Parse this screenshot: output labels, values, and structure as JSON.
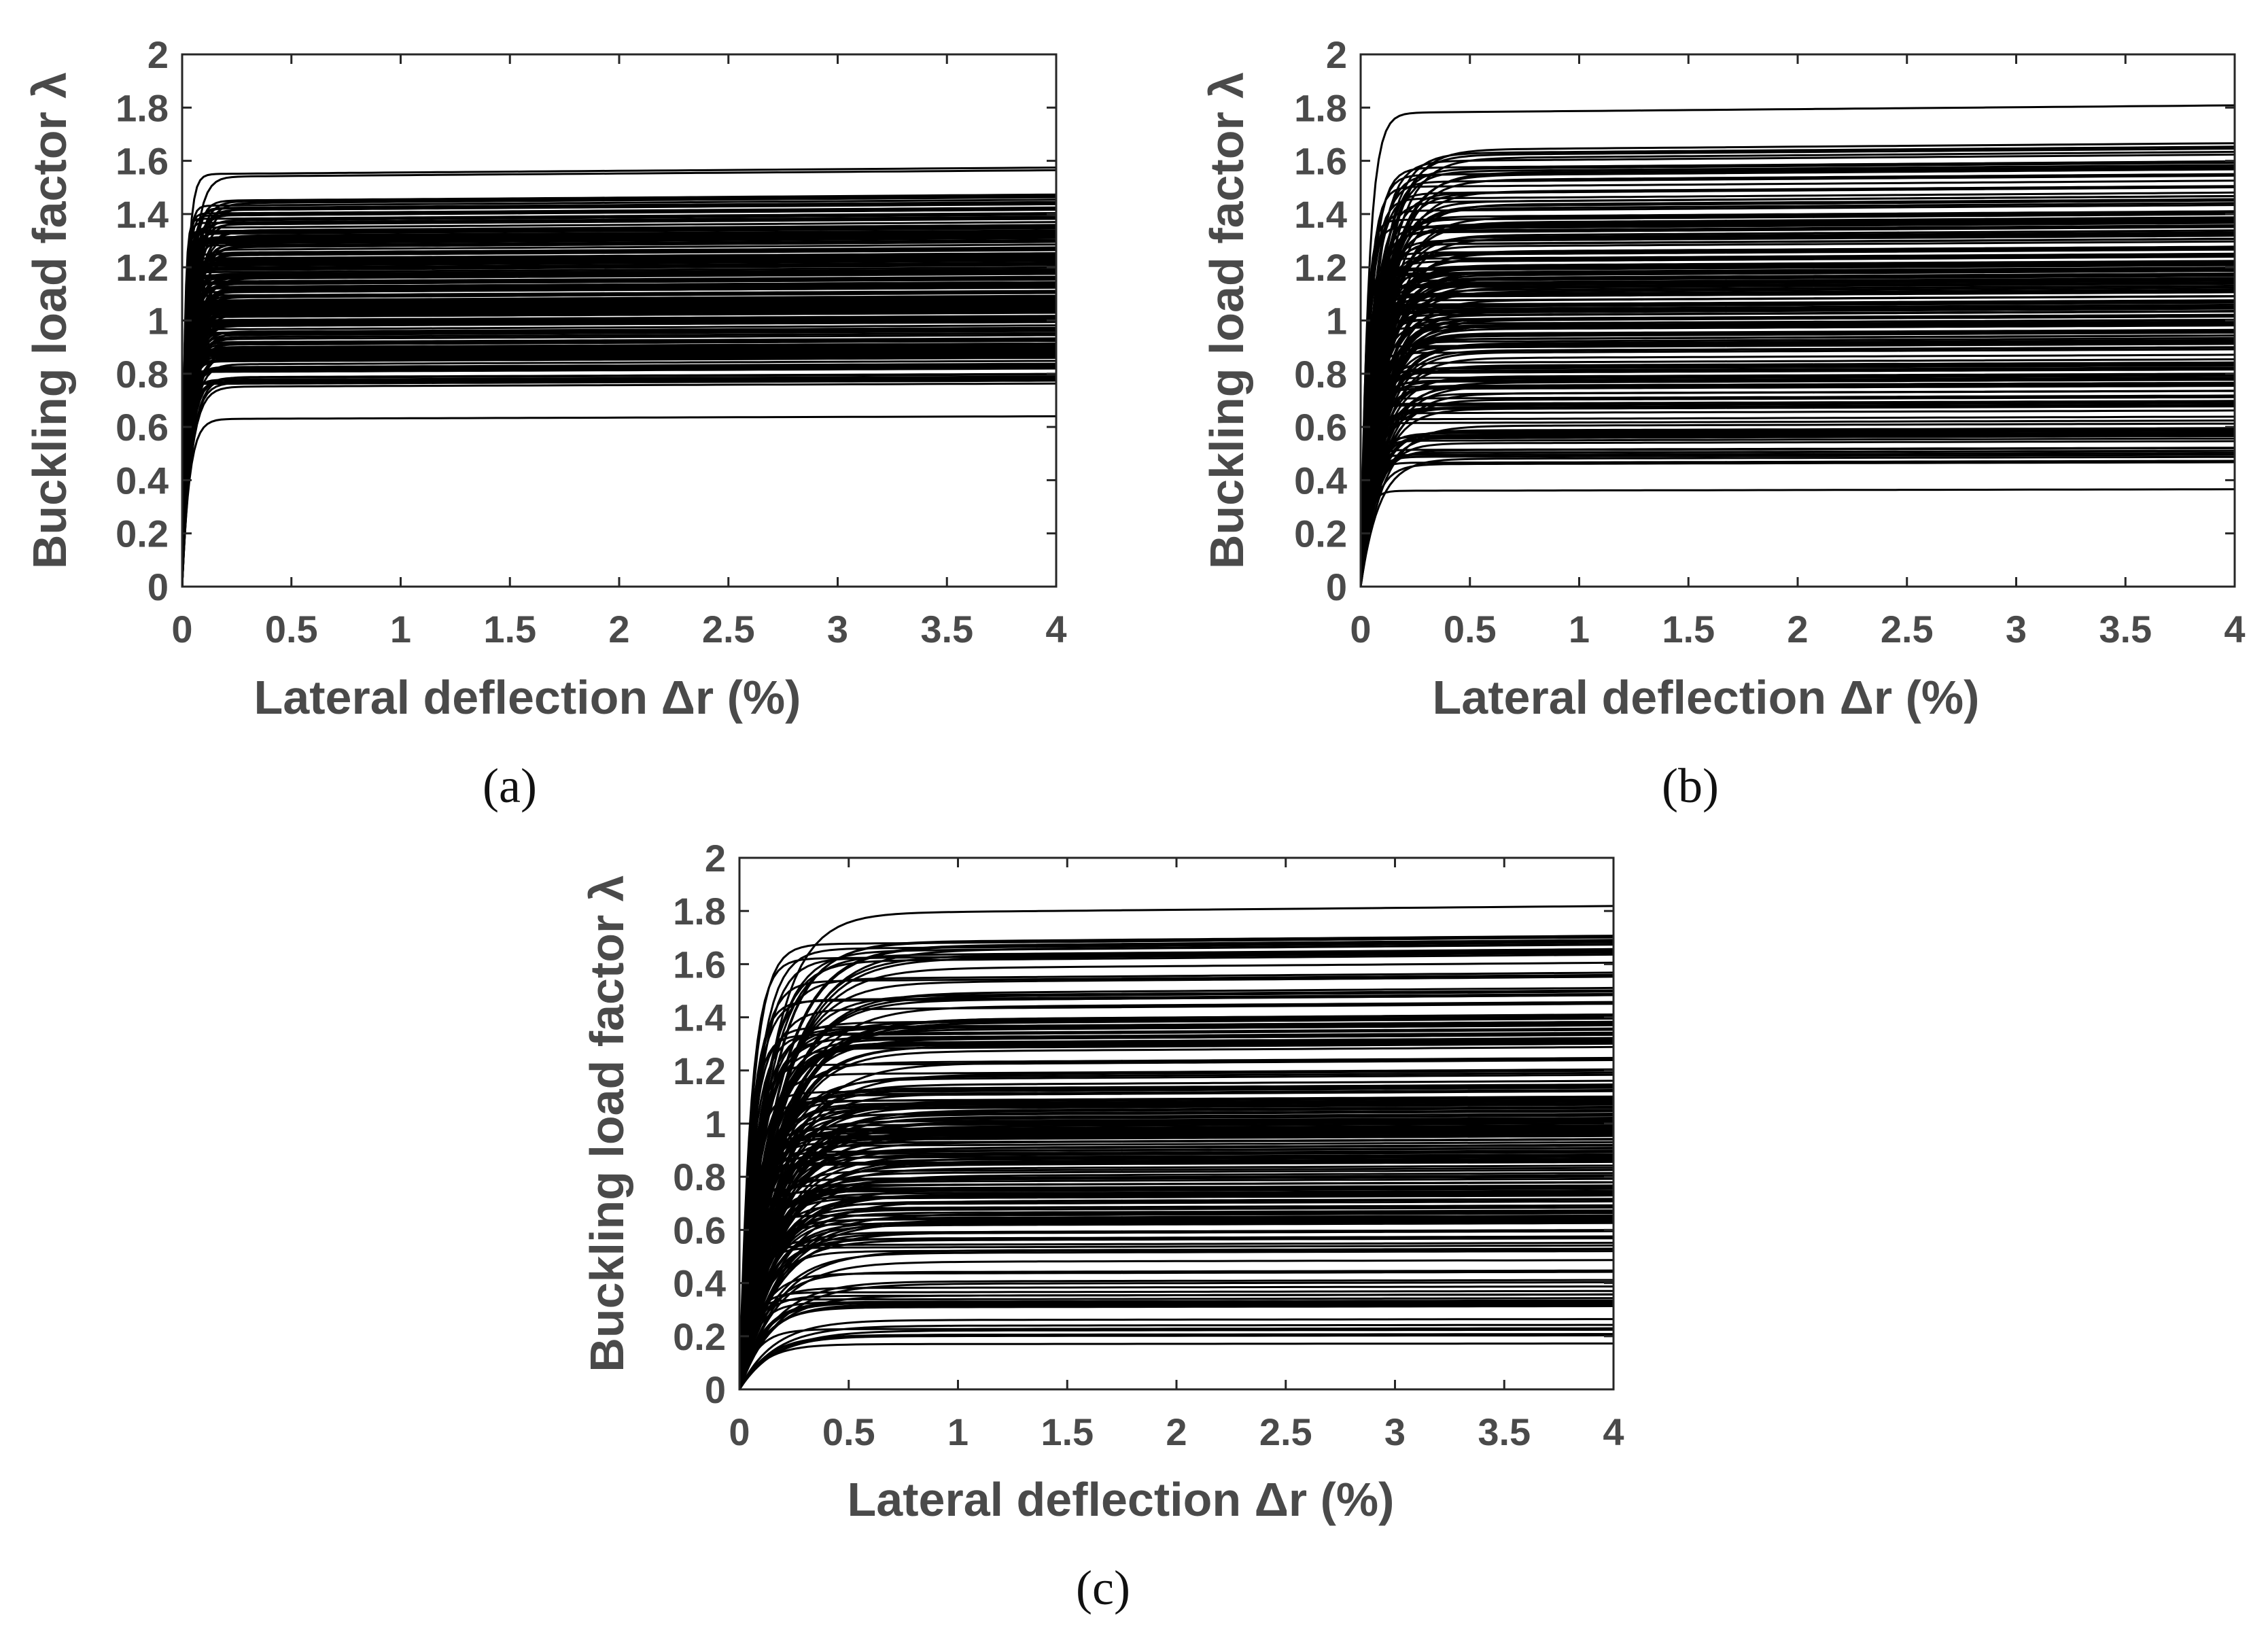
{
  "chart_data": [
    {
      "panel": "a",
      "caption": "(a)",
      "type": "line",
      "xlabel": "Lateral deflection Δr (%)",
      "ylabel": "Buckling load factor λ",
      "xlim": [
        0,
        4
      ],
      "ylim": [
        0,
        2
      ],
      "xticks": [
        "0",
        "0.5",
        "1",
        "1.5",
        "2",
        "2.5",
        "3",
        "3.5",
        "4"
      ],
      "yticks": [
        "0",
        "0.2",
        "0.4",
        "0.6",
        "0.8",
        "1",
        "1.2",
        "1.4",
        "1.6",
        "1.8",
        "2"
      ],
      "grid": false,
      "curve_count": 200,
      "plateau_min": 0.63,
      "plateau_max": 1.55,
      "plateau_core": [
        0.72,
        1.45
      ],
      "rise_scale": 0.025,
      "outer_curves": [
        0.63,
        1.55,
        1.54,
        1.45,
        1.44
      ]
    },
    {
      "panel": "b",
      "caption": "(b)",
      "type": "line",
      "xlabel": "Lateral deflection Δr (%)",
      "ylabel": "Buckling load factor λ",
      "xlim": [
        0,
        4
      ],
      "ylim": [
        0,
        2
      ],
      "xticks": [
        "0",
        "0.5",
        "1",
        "1.5",
        "2",
        "2.5",
        "3",
        "3.5",
        "4"
      ],
      "yticks": [
        "0",
        "0.2",
        "0.4",
        "0.6",
        "0.8",
        "1",
        "1.2",
        "1.4",
        "1.6",
        "1.8",
        "2"
      ],
      "grid": false,
      "curve_count": 200,
      "plateau_min": 0.36,
      "plateau_max": 1.78,
      "plateau_core": [
        0.46,
        1.64
      ],
      "rise_scale": 0.06,
      "outer_curves": [
        0.36,
        1.78,
        1.64,
        1.62,
        0.46
      ]
    },
    {
      "panel": "c",
      "caption": "(c)",
      "type": "line",
      "xlabel": "Lateral deflection Δr (%)",
      "ylabel": "Buckling load factor λ",
      "xlim": [
        0,
        4
      ],
      "ylim": [
        0,
        2
      ],
      "xticks": [
        "0",
        "0.5",
        "1",
        "1.5",
        "2",
        "2.5",
        "3",
        "3.5",
        "4"
      ],
      "yticks": [
        "0",
        "0.2",
        "0.4",
        "0.6",
        "0.8",
        "1",
        "1.2",
        "1.4",
        "1.6",
        "1.8",
        "2"
      ],
      "grid": false,
      "curve_count": 200,
      "plateau_min": 0.17,
      "plateau_max": 1.79,
      "plateau_core": [
        0.2,
        1.68
      ],
      "rise_scale": 0.1,
      "outer_curves": [
        0.17,
        1.79,
        1.68,
        1.62,
        0.2
      ]
    }
  ]
}
